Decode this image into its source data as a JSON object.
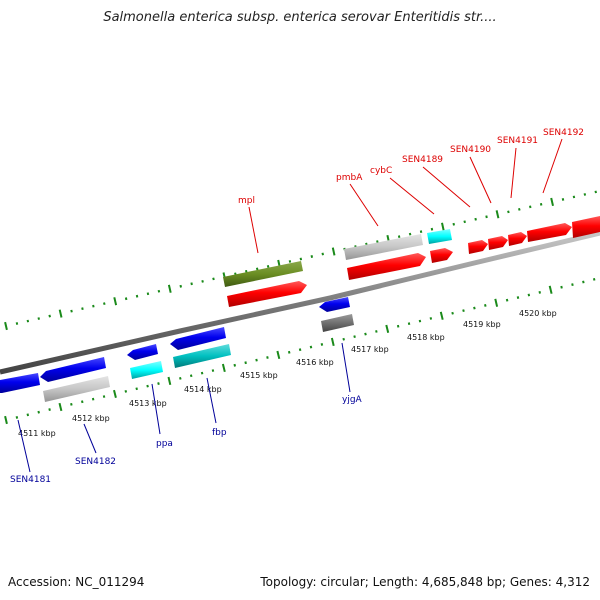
{
  "title": "Salmonella enterica subsp. enterica serovar Enteritidis str....",
  "footer": {
    "accession": "Accession: NC_011294",
    "topology": "Topology: circular; Length: 4,685,848 bp; Genes: 4,312"
  },
  "colors": {
    "forward_label": "#dd0000",
    "reverse_label": "#000099",
    "tick": "#1a8a1a",
    "backbone": "#8a8a8a"
  },
  "scale_labels": [
    "4511 kbp",
    "4512 kbp",
    "4513 kbp",
    "4514 kbp",
    "4515 kbp",
    "4516 kbp",
    "4517 kbp",
    "4518 kbp",
    "4519 kbp",
    "4520 kbp"
  ],
  "forward_labels": [
    "mpl",
    "pmbA",
    "cybC",
    "SEN4189",
    "SEN4190",
    "SEN4191",
    "SEN4192"
  ],
  "reverse_labels": [
    "SEN4181",
    "SEN4182",
    "ppa",
    "fbp",
    "yjgA"
  ]
}
